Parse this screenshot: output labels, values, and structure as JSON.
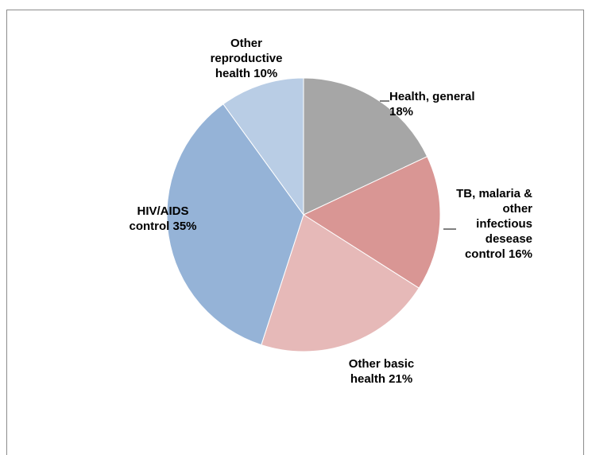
{
  "chart_data": {
    "type": "pie",
    "slices": [
      {
        "label_lines": [
          "Health, general",
          "18%"
        ],
        "value": 18,
        "color": "#a6a6a6"
      },
      {
        "label_lines": [
          "TB, malaria &",
          "other",
          "infectious",
          "desease",
          "control 16%"
        ],
        "value": 16,
        "color": "#d99694"
      },
      {
        "label_lines": [
          "Other basic",
          "health 21%"
        ],
        "value": 21,
        "color": "#e6b9b8"
      },
      {
        "label_lines": [
          "HIV/AIDS",
          "control 35%"
        ],
        "value": 35,
        "color": "#95b3d7"
      },
      {
        "label_lines": [
          "Other",
          "reproductive",
          "health 10%"
        ],
        "value": 10,
        "color": "#b9cde5"
      }
    ]
  }
}
